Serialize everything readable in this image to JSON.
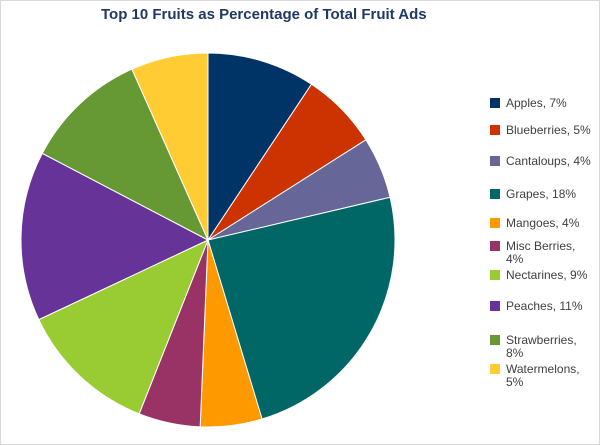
{
  "chart_data": {
    "type": "pie",
    "title": "Top 10 Fruits as Percentage of Total Fruit Ads",
    "legend_position": "right",
    "slices": [
      {
        "label": "Apples",
        "legend_label": "Apples, 7%",
        "value": 7,
        "color": "#003366"
      },
      {
        "label": "Blueberries",
        "legend_label": "Blueberries, 5%",
        "value": 5,
        "color": "#cc3300"
      },
      {
        "label": "Cantaloups",
        "legend_label": "Cantaloups, 4%",
        "value": 4,
        "color": "#666699"
      },
      {
        "label": "Grapes",
        "legend_label": "Grapes, 18%",
        "value": 18,
        "color": "#006666"
      },
      {
        "label": "Mangoes",
        "legend_label": "Mangoes, 4%",
        "value": 4,
        "color": "#ff9900"
      },
      {
        "label": "Misc Berries",
        "legend_label": "Misc Berries, 4%",
        "value": 4,
        "color": "#993366"
      },
      {
        "label": "Nectarines",
        "legend_label": "Nectarines, 9%",
        "value": 9,
        "color": "#99cc33"
      },
      {
        "label": "Peaches",
        "legend_label": "Peaches, 11%",
        "value": 11,
        "color": "#663399"
      },
      {
        "label": "Strawberries",
        "legend_label": "Strawberries, 8%",
        "value": 8,
        "color": "#669933"
      },
      {
        "label": "Watermelons",
        "legend_label": "Watermelons, 5%",
        "value": 5,
        "color": "#ffcc33"
      }
    ]
  }
}
